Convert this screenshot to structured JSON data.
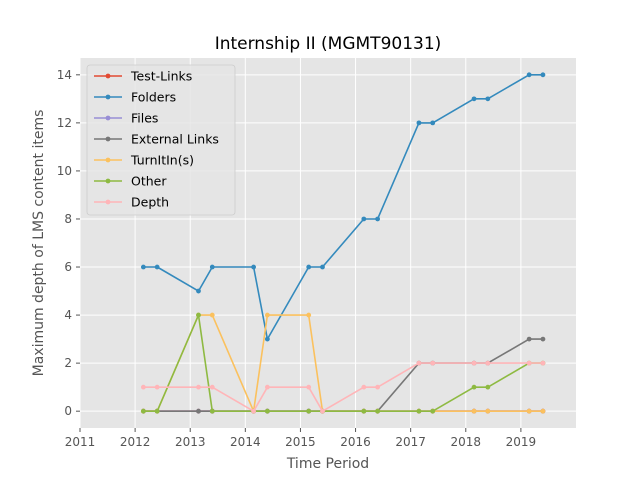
{
  "chart_data": {
    "type": "line",
    "title": "Internship II (MGMT90131)",
    "xlabel": "Time Period",
    "ylabel": "Maximum depth of LMS content items",
    "xlim": [
      2011,
      2020
    ],
    "ylim": [
      -0.7,
      14.7
    ],
    "x_ticks": [
      2011,
      2012,
      2013,
      2014,
      2015,
      2016,
      2017,
      2018,
      2019
    ],
    "x_tick_labels": [
      "2011",
      "2012",
      "2013",
      "2014",
      "2015",
      "2016",
      "2017",
      "2018",
      "2019"
    ],
    "y_ticks": [
      0,
      2,
      4,
      6,
      8,
      10,
      12,
      14
    ],
    "y_tick_labels": [
      "0",
      "2",
      "4",
      "6",
      "8",
      "10",
      "12",
      "14"
    ],
    "x": [
      2012.15,
      2012.4,
      2013.15,
      2013.4,
      2014.15,
      2014.4,
      2015.15,
      2015.4,
      2016.15,
      2016.4,
      2017.15,
      2017.4,
      2018.15,
      2018.4,
      2019.15,
      2019.4
    ],
    "grid": true,
    "legend_position": "top-left",
    "series": [
      {
        "name": "Test-Links",
        "color": "#E24A33",
        "values": [
          0,
          0,
          0,
          0,
          0,
          0,
          0,
          0,
          0,
          0,
          0,
          0,
          0,
          0,
          0,
          0
        ]
      },
      {
        "name": "Folders",
        "color": "#348ABD",
        "values": [
          6,
          6,
          5,
          6,
          6,
          3,
          6,
          6,
          8,
          8,
          12,
          12,
          13,
          13,
          14,
          14
        ]
      },
      {
        "name": "Files",
        "color": "#988ED5",
        "values": [
          0,
          0,
          0,
          0,
          0,
          0,
          0,
          0,
          0,
          0,
          0,
          0,
          0,
          0,
          0,
          0
        ]
      },
      {
        "name": "External Links",
        "color": "#777777",
        "values": [
          0,
          0,
          0,
          0,
          0,
          0,
          0,
          0,
          0,
          0,
          2,
          2,
          2,
          2,
          3,
          3
        ]
      },
      {
        "name": "TurnItIn(s)",
        "color": "#FBC15E",
        "values": [
          0,
          0,
          4,
          4,
          0,
          4,
          4,
          0,
          0,
          0,
          0,
          0,
          0,
          0,
          0,
          0
        ]
      },
      {
        "name": "Other",
        "color": "#8EBA42",
        "values": [
          0,
          0,
          4,
          0,
          0,
          0,
          0,
          0,
          0,
          0,
          0,
          0,
          1,
          1,
          2,
          2
        ]
      },
      {
        "name": "Depth",
        "color": "#FFB5B8",
        "values": [
          1,
          1,
          1,
          1,
          0,
          1,
          1,
          0,
          1,
          1,
          2,
          2,
          2,
          2,
          2,
          2
        ]
      }
    ]
  }
}
